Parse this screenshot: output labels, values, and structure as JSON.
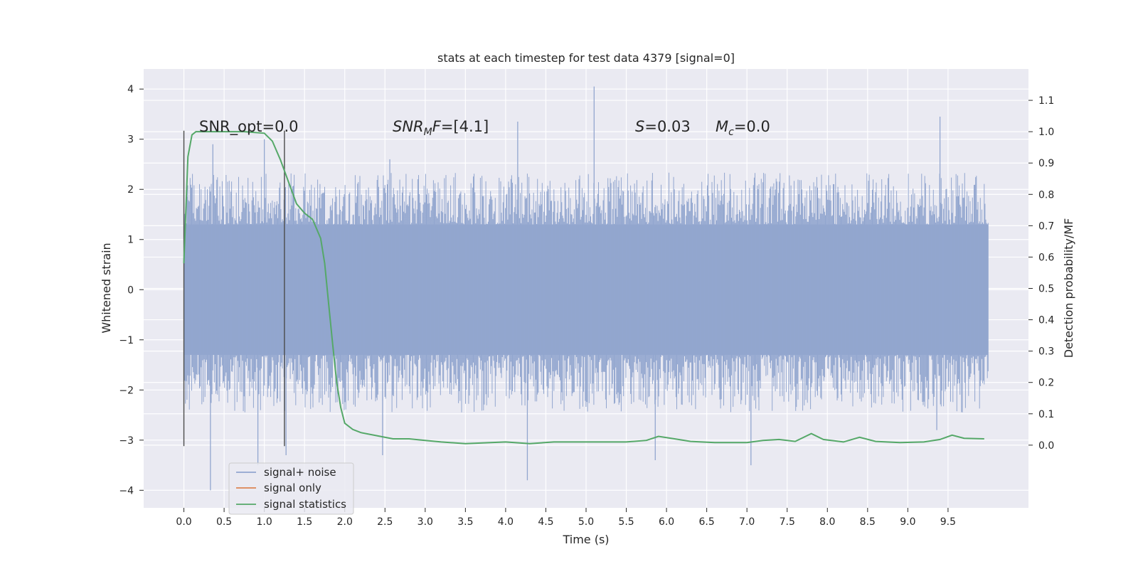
{
  "chart_data": {
    "type": "line",
    "title": "stats at each timestep for test data 4379 [signal=0]",
    "xlabel": "Time (s)",
    "ylabel": "Whitened strain",
    "ylabel_right": "Detection probability/MF",
    "xlim": [
      -0.5,
      10.5
    ],
    "ylim": [
      -4.35,
      4.4
    ],
    "ylim_right": [
      -0.2,
      1.2
    ],
    "grid": true,
    "x_ticks": [
      "0.0",
      "0.5",
      "1.0",
      "1.5",
      "2.0",
      "2.5",
      "3.0",
      "3.5",
      "4.0",
      "4.5",
      "5.0",
      "5.5",
      "6.0",
      "6.5",
      "7.0",
      "7.5",
      "8.0",
      "8.5",
      "9.0",
      "9.5"
    ],
    "y_ticks": [
      "−4",
      "−3",
      "−2",
      "−1",
      "0",
      "1",
      "2",
      "3",
      "4"
    ],
    "y_right_ticks": [
      "0.0",
      "0.1",
      "0.2",
      "0.3",
      "0.4",
      "0.5",
      "0.6",
      "0.7",
      "0.8",
      "0.9",
      "1.0",
      "1.1"
    ],
    "legend": {
      "placement": "lower-left",
      "entries": [
        "signal+ noise",
        "signal only",
        "signal statistics"
      ]
    },
    "annotations": {
      "snr_opt": "SNR_opt=0.0",
      "snr_mf_italic": "SNR",
      "snr_mf_sub": "M",
      "snr_mf_italic2": "F",
      "snr_mf_value": "=[4.1]",
      "s_italic": "S",
      "s_value": "=0.03",
      "mc_italic": "M",
      "mc_sub": "c",
      "mc_value": "=0.0"
    },
    "vertical_markers_x": [
      0.0,
      1.25
    ],
    "series": [
      {
        "name": "signal+ noise",
        "color": "#92a6cf",
        "x_start": 0.0,
        "x_end": 10.0,
        "core_abs": 1.3,
        "typical_peak_pos": 2.2,
        "typical_peak_neg": -2.3,
        "spikes": [
          {
            "x": 0.33,
            "y": -4.0
          },
          {
            "x": 0.36,
            "y": 2.9
          },
          {
            "x": 0.92,
            "y": -3.5
          },
          {
            "x": 1.0,
            "y": 3.0
          },
          {
            "x": 1.27,
            "y": -3.3
          },
          {
            "x": 2.47,
            "y": -3.3
          },
          {
            "x": 2.56,
            "y": 2.6
          },
          {
            "x": 4.15,
            "y": 3.35
          },
          {
            "x": 4.27,
            "y": -3.8
          },
          {
            "x": 5.1,
            "y": 4.05
          },
          {
            "x": 5.86,
            "y": -3.4
          },
          {
            "x": 7.05,
            "y": -3.5
          },
          {
            "x": 9.36,
            "y": -2.8
          },
          {
            "x": 9.4,
            "y": 3.45
          }
        ]
      },
      {
        "name": "signal only",
        "color": "#dd8452",
        "x": [],
        "y": []
      },
      {
        "name": "signal statistics",
        "color": "#55a868",
        "axis": "right",
        "x": [
          0.0,
          0.05,
          0.1,
          0.15,
          0.25,
          0.5,
          0.75,
          1.0,
          1.1,
          1.2,
          1.3,
          1.4,
          1.5,
          1.6,
          1.7,
          1.75,
          1.8,
          1.85,
          1.9,
          1.95,
          2.0,
          2.1,
          2.2,
          2.4,
          2.6,
          2.8,
          3.0,
          3.2,
          3.5,
          4.0,
          4.3,
          4.6,
          5.0,
          5.5,
          5.75,
          5.9,
          6.1,
          6.3,
          6.6,
          7.0,
          7.2,
          7.4,
          7.6,
          7.8,
          7.95,
          8.2,
          8.4,
          8.6,
          8.9,
          9.2,
          9.4,
          9.55,
          9.7,
          9.95
        ],
        "y": [
          0.58,
          0.92,
          0.99,
          1.0,
          1.0,
          1.0,
          1.0,
          0.995,
          0.97,
          0.91,
          0.84,
          0.77,
          0.74,
          0.72,
          0.66,
          0.58,
          0.45,
          0.32,
          0.2,
          0.12,
          0.07,
          0.05,
          0.04,
          0.03,
          0.02,
          0.02,
          0.015,
          0.01,
          0.005,
          0.01,
          0.005,
          0.01,
          0.01,
          0.01,
          0.015,
          0.028,
          0.02,
          0.012,
          0.008,
          0.008,
          0.015,
          0.018,
          0.012,
          0.037,
          0.018,
          0.01,
          0.025,
          0.012,
          0.008,
          0.01,
          0.018,
          0.032,
          0.022,
          0.02
        ]
      }
    ]
  }
}
